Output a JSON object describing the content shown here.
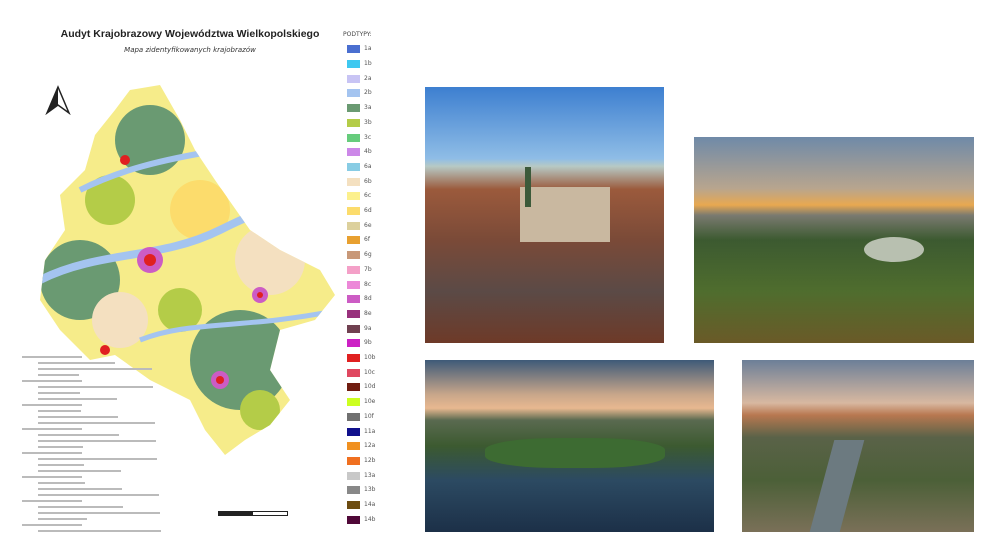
{
  "map": {
    "title": "Audyt Krajobrazowy Województwa Wielkopolskiego",
    "subtitle": "Mapa zidentyfikowanych krajobrazów",
    "legend_header": "PODTYPY:",
    "legend": [
      {
        "code": "1a",
        "color": "#4a6fd0"
      },
      {
        "code": "1b",
        "color": "#3ec8f0"
      },
      {
        "code": "2a",
        "color": "#c8c4f4"
      },
      {
        "code": "2b",
        "color": "#a4c4f0"
      },
      {
        "code": "3a",
        "color": "#6a9a72"
      },
      {
        "code": "3b",
        "color": "#b4cc48"
      },
      {
        "code": "3c",
        "color": "#66cc7c"
      },
      {
        "code": "4b",
        "color": "#cc88e8"
      },
      {
        "code": "6a",
        "color": "#88cce4"
      },
      {
        "code": "6b",
        "color": "#f4e0c0"
      },
      {
        "code": "6c",
        "color": "#fcf08c"
      },
      {
        "code": "6d",
        "color": "#fcdc6c"
      },
      {
        "code": "6e",
        "color": "#dcd09c"
      },
      {
        "code": "6f",
        "color": "#e8a030"
      },
      {
        "code": "6g",
        "color": "#c89878"
      },
      {
        "code": "7b",
        "color": "#f4a0c8"
      },
      {
        "code": "8c",
        "color": "#ec88d8"
      },
      {
        "code": "8d",
        "color": "#cc5cc4"
      },
      {
        "code": "8e",
        "color": "#98307c"
      },
      {
        "code": "9a",
        "color": "#704050"
      },
      {
        "code": "9b",
        "color": "#cc20c4"
      },
      {
        "code": "10b",
        "color": "#e02020"
      },
      {
        "code": "10c",
        "color": "#e04860"
      },
      {
        "code": "10d",
        "color": "#701c10"
      },
      {
        "code": "10e",
        "color": "#ccff20"
      },
      {
        "code": "10f",
        "color": "#707070"
      },
      {
        "code": "11a",
        "color": "#10108c"
      },
      {
        "code": "12a",
        "color": "#f09020"
      },
      {
        "code": "12b",
        "color": "#f07020"
      },
      {
        "code": "13a",
        "color": "#c8c8c8"
      },
      {
        "code": "13b",
        "color": "#888888"
      },
      {
        "code": "14a",
        "color": "#6c4c10"
      },
      {
        "code": "14b",
        "color": "#500838"
      }
    ],
    "north_arrow_icon": "north-arrow-icon"
  },
  "photos": [
    {
      "subject": "old town square aerial"
    },
    {
      "subject": "park at sunset"
    },
    {
      "subject": "lake aerial"
    },
    {
      "subject": "river valley city"
    }
  ]
}
